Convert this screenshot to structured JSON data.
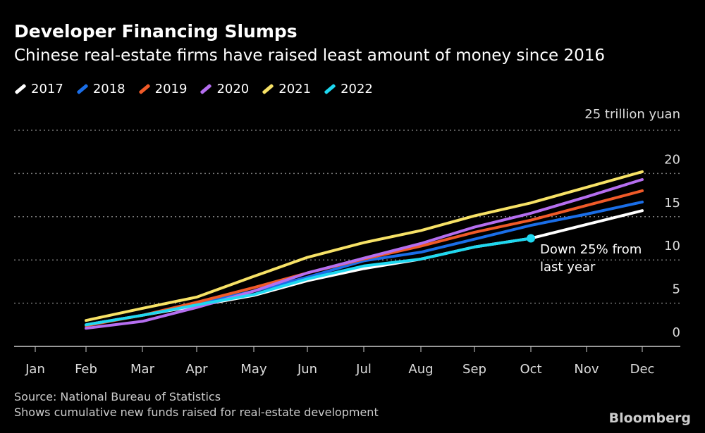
{
  "chart_data": {
    "type": "line",
    "title": "Developer Financing Slumps",
    "subtitle": "Chinese real-estate firms have raised least amount of money since 2016",
    "categories": [
      "Jan",
      "Feb",
      "Mar",
      "Apr",
      "May",
      "Jun",
      "Jul",
      "Aug",
      "Sep",
      "Oct",
      "Nov",
      "Dec"
    ],
    "ylabel_unit": "25 trillion yuan",
    "ylim": [
      0,
      25
    ],
    "yticks": [
      "0",
      "5",
      "10",
      "15",
      "20"
    ],
    "grid": true,
    "legend_position": "top-left",
    "series": [
      {
        "name": "2017",
        "color": "#ffffff",
        "values": [
          null,
          2.5,
          3.6,
          4.7,
          5.9,
          7.6,
          9.0,
          10.1,
          11.5,
          12.5,
          14.1,
          15.7
        ]
      },
      {
        "name": "2018",
        "color": "#1a6ee8",
        "values": [
          null,
          2.5,
          3.6,
          4.9,
          6.4,
          8.0,
          9.9,
          10.9,
          12.4,
          14.0,
          15.3,
          16.7
        ]
      },
      {
        "name": "2019",
        "color": "#f05a28",
        "values": [
          null,
          2.4,
          3.6,
          5.1,
          6.8,
          8.5,
          10.1,
          11.6,
          13.2,
          14.6,
          16.3,
          18.0
        ]
      },
      {
        "name": "2020",
        "color": "#b56ef0",
        "values": [
          null,
          2.1,
          2.9,
          4.5,
          6.4,
          8.5,
          10.2,
          11.9,
          13.8,
          15.4,
          17.3,
          19.3
        ]
      },
      {
        "name": "2021",
        "color": "#f7e266",
        "values": [
          null,
          3.0,
          4.4,
          5.7,
          8.1,
          10.3,
          12.0,
          13.4,
          15.1,
          16.6,
          18.4,
          20.2
        ]
      },
      {
        "name": "2022",
        "color": "#1ed8f0",
        "values": [
          null,
          2.5,
          3.6,
          4.8,
          6.0,
          7.8,
          9.3,
          10.1,
          11.5,
          12.5,
          null,
          null
        ]
      }
    ],
    "annotation": {
      "line1": "Down 25% from",
      "line2": "last year"
    }
  },
  "source": "Source: National Bureau of Statistics",
  "note": "Shows cumulative new funds raised for real-estate development",
  "logo": "Bloomberg"
}
